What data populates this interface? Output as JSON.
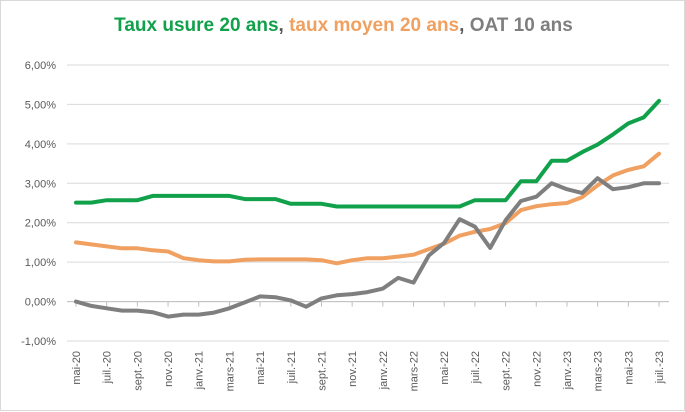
{
  "chart_data": {
    "type": "line",
    "title_parts": [
      {
        "text": "Taux usure 20 ans",
        "color": "#12A14B"
      },
      {
        "text": ", ",
        "color": "#595959"
      },
      {
        "text": "taux moyen 20 ans",
        "color": "#F0A060"
      },
      {
        "text": ", ",
        "color": "#595959"
      },
      {
        "text": "OAT 10 ans",
        "color": "#7F7F7F"
      }
    ],
    "ylim": [
      -1,
      6
    ],
    "yticks": [
      "-1,00%",
      "0,00%",
      "1,00%",
      "2,00%",
      "3,00%",
      "4,00%",
      "5,00%",
      "6,00%"
    ],
    "grid": true,
    "xtick_labels": [
      "mai-20",
      "juil.-20",
      "sept.-20",
      "nov.-20",
      "janv.-21",
      "mars-21",
      "mai-21",
      "juil.-21",
      "sept.-21",
      "nov.-21",
      "janv.-22",
      "mars-22",
      "mai-22",
      "juil.-22",
      "sept.-22",
      "nov.-22",
      "janv.-23",
      "mars-23",
      "mai-23",
      "juil.-23"
    ],
    "x_start": "2020-05",
    "x_end": "2023-07",
    "series": [
      {
        "name": "Taux usure 20 ans",
        "color": "#12A14B",
        "values": [
          2.51,
          2.51,
          2.57,
          2.57,
          2.57,
          2.68,
          2.68,
          2.68,
          2.68,
          2.68,
          2.68,
          2.6,
          2.6,
          2.6,
          2.48,
          2.48,
          2.48,
          2.41,
          2.41,
          2.41,
          2.41,
          2.41,
          2.41,
          2.41,
          2.41,
          2.41,
          2.57,
          2.57,
          2.57,
          3.05,
          3.05,
          3.57,
          3.57,
          3.79,
          3.98,
          4.24,
          4.52,
          4.67,
          5.09
        ]
      },
      {
        "name": "taux moyen 20 ans",
        "color": "#F0A060",
        "values": [
          1.5,
          1.45,
          1.4,
          1.35,
          1.35,
          1.3,
          1.27,
          1.1,
          1.05,
          1.02,
          1.02,
          1.06,
          1.07,
          1.07,
          1.07,
          1.07,
          1.05,
          0.97,
          1.05,
          1.1,
          1.1,
          1.14,
          1.19,
          1.33,
          1.47,
          1.67,
          1.77,
          1.84,
          1.99,
          2.32,
          2.42,
          2.47,
          2.5,
          2.65,
          2.95,
          3.2,
          3.34,
          3.43,
          3.75
        ]
      },
      {
        "name": "OAT 10 ans",
        "color": "#7F7F7F",
        "values": [
          0.0,
          -0.11,
          -0.17,
          -0.23,
          -0.23,
          -0.27,
          -0.38,
          -0.33,
          -0.33,
          -0.28,
          -0.17,
          -0.02,
          0.13,
          0.11,
          0.03,
          -0.13,
          0.08,
          0.16,
          0.19,
          0.24,
          0.33,
          0.6,
          0.48,
          1.17,
          1.49,
          2.09,
          1.9,
          1.36,
          2.06,
          2.55,
          2.66,
          3.0,
          2.85,
          2.75,
          3.13,
          2.85,
          2.9,
          3.0,
          3.0
        ]
      }
    ]
  }
}
